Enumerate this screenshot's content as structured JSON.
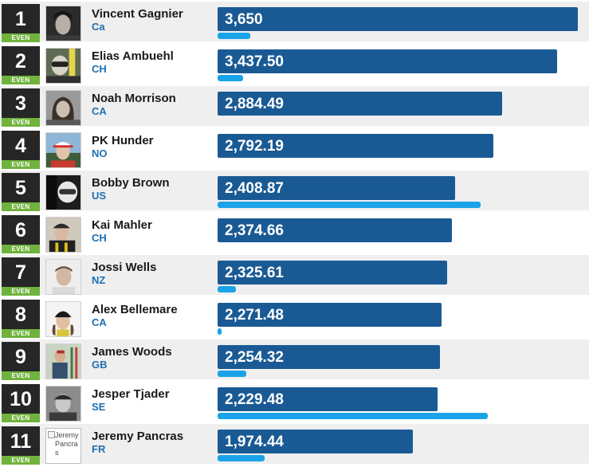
{
  "leaderboard": {
    "max_score": 3650,
    "rank_tag": "EVEN",
    "colors": {
      "rank_box": "#262626",
      "rank_tag": "#6fb33d",
      "score_bar": "#1a5a94",
      "secondary_bar": "#1aa3e8",
      "country_text": "#1f6fb0",
      "row_alt": "#efefef"
    },
    "rows": [
      {
        "rank": "1",
        "name": "Vincent Gagnier",
        "country": "Ca",
        "score": "3,650",
        "score_value": 3650,
        "secondary_fraction": 0.09,
        "photo": "portrait-dark-hair"
      },
      {
        "rank": "2",
        "name": "Elias Ambuehl",
        "country": "CH",
        "score": "3,437.50",
        "score_value": 3437.5,
        "secondary_fraction": 0.07,
        "photo": "portrait-helmet-goggles"
      },
      {
        "rank": "3",
        "name": "Noah Morrison",
        "country": "CA",
        "score": "2,884.49",
        "score_value": 2884.49,
        "secondary_fraction": 0.0,
        "photo": "portrait-long-hair"
      },
      {
        "rank": "4",
        "name": "PK Hunder",
        "country": "NO",
        "score": "2,792.19",
        "score_value": 2792.19,
        "secondary_fraction": 0.0,
        "photo": "portrait-cap-outdoor"
      },
      {
        "rank": "5",
        "name": "Bobby Brown",
        "country": "US",
        "score": "2,408.87",
        "score_value": 2408.87,
        "secondary_fraction": 0.73,
        "photo": "portrait-bw-helmet"
      },
      {
        "rank": "6",
        "name": "Kai Mahler",
        "country": "CH",
        "score": "2,374.66",
        "score_value": 2374.66,
        "secondary_fraction": 0.0,
        "photo": "portrait-team-jacket"
      },
      {
        "rank": "7",
        "name": "Jossi Wells",
        "country": "NZ",
        "score": "2,325.61",
        "score_value": 2325.61,
        "secondary_fraction": 0.05,
        "photo": "portrait-light-bg"
      },
      {
        "rank": "8",
        "name": "Alex Bellemare",
        "country": "CA",
        "score": "2,271.48",
        "score_value": 2271.48,
        "secondary_fraction": 0.012,
        "photo": "portrait-beanie"
      },
      {
        "rank": "9",
        "name": "James Woods",
        "country": "GB",
        "score": "2,254.32",
        "score_value": 2254.32,
        "secondary_fraction": 0.08,
        "photo": "portrait-skis-outdoor"
      },
      {
        "rank": "10",
        "name": "Jesper Tjader",
        "country": "SE",
        "score": "2,229.48",
        "score_value": 2229.48,
        "secondary_fraction": 0.75,
        "photo": "portrait-bw-cap"
      },
      {
        "rank": "11",
        "name": "Jeremy Pancras",
        "country": "FR",
        "score": "1,974.44",
        "score_value": 1974.44,
        "secondary_fraction": 0.13,
        "photo": "broken-image",
        "photo_alt": "Jeremy Pancras"
      }
    ]
  }
}
